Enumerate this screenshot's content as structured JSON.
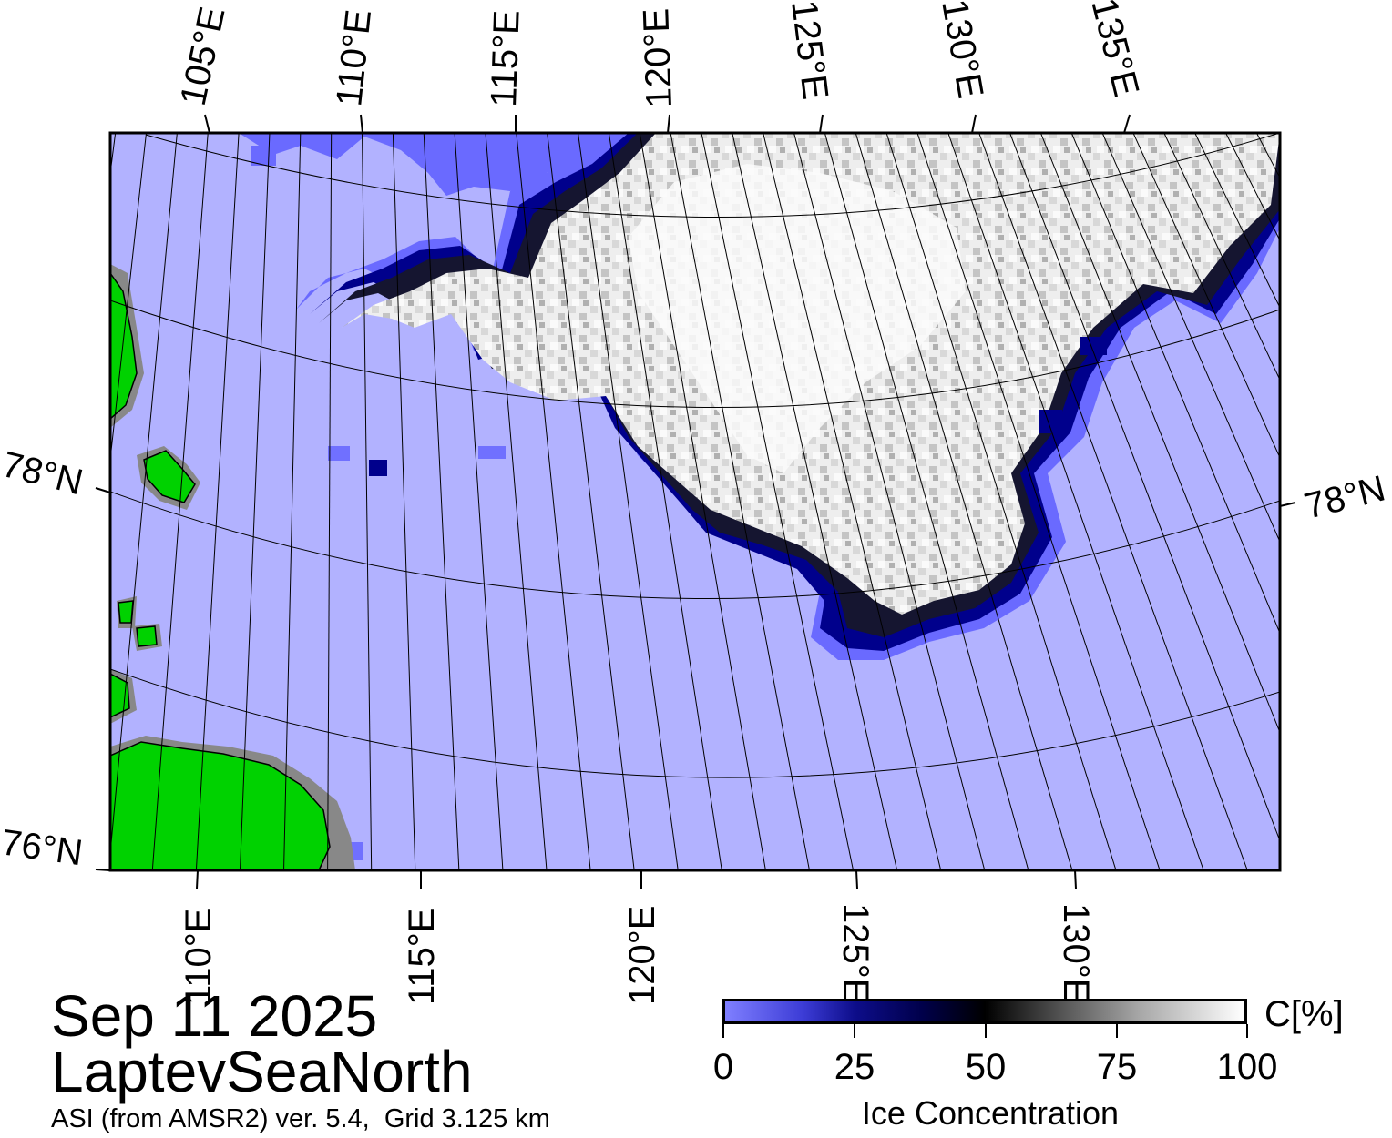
{
  "map": {
    "longitude_labels_top": [
      "105°E",
      "110°E",
      "115°E",
      "120°E",
      "125°E",
      "130°E",
      "135°E"
    ],
    "longitude_labels_bottom": [
      "110°E",
      "115°E",
      "120°E",
      "125°E",
      "130°E"
    ],
    "latitude_labels_left": [
      "78°N",
      "76°N"
    ],
    "latitude_labels_right": [
      "78°N"
    ],
    "colors": {
      "open_water": "#b2b2ff",
      "land": "#00d200",
      "coast_mask": "#888888",
      "ice_edge": "#00008c",
      "high_concentration_ice": "#f0f0f0"
    }
  },
  "caption": {
    "date": "Sep 11 2025",
    "region": "LaptevSeaNorth",
    "product": "ASI (from AMSR2) ver. 5.4,  Grid 3.125 km"
  },
  "colorbar": {
    "ticks": [
      "0",
      "25",
      "50",
      "75",
      "100"
    ],
    "unit": "C[%]",
    "title": "Ice Concentration",
    "colors": [
      "#7f7fff",
      "#00004a",
      "#000000",
      "#ffffff"
    ]
  }
}
